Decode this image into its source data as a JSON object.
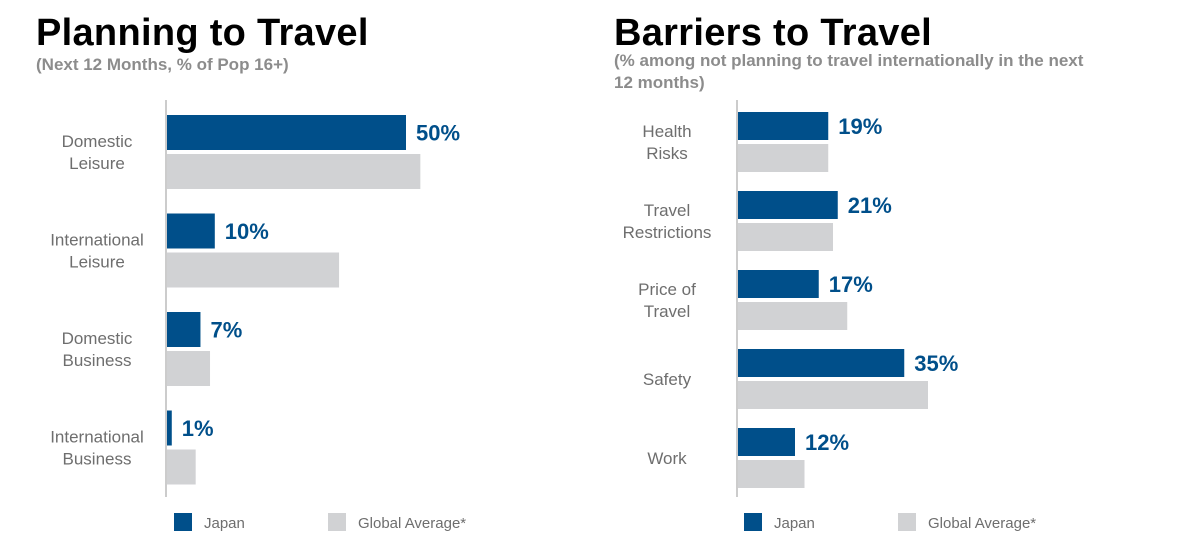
{
  "colors": {
    "japan": "#004f8a",
    "global": "#d1d2d4",
    "axis": "#cccccc",
    "label": "#6e6e6e",
    "value": "#004f8a"
  },
  "legend": {
    "japan_label": "Japan",
    "global_label": "Global Average*"
  },
  "chart_data": [
    {
      "type": "bar",
      "orientation": "horizontal",
      "title": "Planning to Travel",
      "subtitle": "(Next 12 Months, % of Pop 16+)",
      "categories": [
        [
          "Domestic",
          "Leisure"
        ],
        [
          "International",
          "Leisure"
        ],
        [
          "Domestic",
          "Business"
        ],
        [
          "International",
          "Business"
        ]
      ],
      "series": [
        {
          "name": "Japan",
          "values": [
            50,
            10,
            7,
            1
          ],
          "labels": [
            "50%",
            "10%",
            "7%",
            "1%"
          ]
        },
        {
          "name": "Global Average*",
          "values": [
            53,
            36,
            9,
            6
          ]
        }
      ],
      "xlim": [
        0,
        100
      ],
      "grid": false,
      "legend_position": "bottom"
    },
    {
      "type": "bar",
      "orientation": "horizontal",
      "title": "Barriers to Travel",
      "subtitle": "(% among not planning to travel internationally in the next 12 months)",
      "categories": [
        [
          "Health",
          "Risks"
        ],
        [
          "Travel",
          "Restrictions"
        ],
        [
          "Price of",
          "Travel"
        ],
        [
          "Safety"
        ],
        [
          "Work"
        ]
      ],
      "series": [
        {
          "name": "Japan",
          "values": [
            19,
            21,
            17,
            35,
            12
          ],
          "labels": [
            "19%",
            "21%",
            "17%",
            "35%",
            "12%"
          ]
        },
        {
          "name": "Global Average*",
          "values": [
            19,
            20,
            23,
            40,
            14
          ]
        }
      ],
      "xlim": [
        0,
        100
      ],
      "grid": false,
      "legend_position": "bottom"
    }
  ]
}
